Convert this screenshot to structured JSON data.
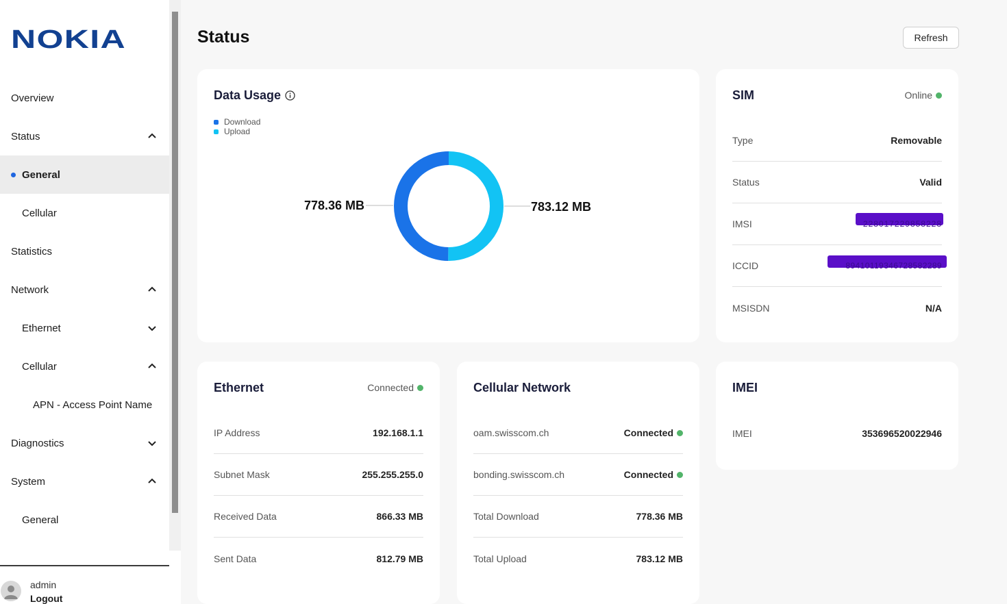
{
  "brand": {
    "logo_text": "NOKIA",
    "color": "#124191"
  },
  "page": {
    "title": "Status",
    "refresh_label": "Refresh"
  },
  "sidebar": {
    "items": [
      {
        "label": "Overview"
      },
      {
        "label": "Status",
        "chevron": "up"
      },
      {
        "label": "General",
        "active": true
      },
      {
        "label": "Cellular"
      },
      {
        "label": "Statistics"
      },
      {
        "label": "Network",
        "chevron": "up"
      },
      {
        "label": "Ethernet",
        "chevron": "down"
      },
      {
        "label": "Cellular",
        "chevron": "up"
      },
      {
        "label": "APN - Access Point Name"
      },
      {
        "label": "Diagnostics",
        "chevron": "down"
      },
      {
        "label": "System",
        "chevron": "up"
      },
      {
        "label": "General"
      }
    ],
    "user": {
      "name": "admin",
      "logout_label": "Logout"
    }
  },
  "data_usage": {
    "title": "Data Usage",
    "legend": [
      {
        "label": "Download",
        "color": "#1a73e8"
      },
      {
        "label": "Upload",
        "color": "#12c3f4"
      }
    ],
    "download_label": "778.36 MB",
    "upload_label": "783.12 MB",
    "download_value": 778.36,
    "upload_value": 783.12
  },
  "sim": {
    "title": "SIM",
    "status": "Online",
    "rows": [
      {
        "key": "Type",
        "value": "Removable"
      },
      {
        "key": "Status",
        "value": "Valid"
      },
      {
        "key": "IMSI",
        "value": "228017229858228",
        "redacted": true
      },
      {
        "key": "ICCID",
        "value": "89410119346728582289",
        "redacted": true
      },
      {
        "key": "MSISDN",
        "value": "N/A"
      }
    ]
  },
  "ethernet": {
    "title": "Ethernet",
    "status": "Connected",
    "rows": [
      {
        "key": "IP Address",
        "value": "192.168.1.1"
      },
      {
        "key": "Subnet Mask",
        "value": "255.255.255.0"
      },
      {
        "key": "Received Data",
        "value": "866.33 MB"
      },
      {
        "key": "Sent Data",
        "value": "812.79 MB"
      }
    ]
  },
  "cellular": {
    "title": "Cellular Network",
    "rows": [
      {
        "key": "oam.swisscom.ch",
        "value": "Connected",
        "dot": true
      },
      {
        "key": "bonding.swisscom.ch",
        "value": "Connected",
        "dot": true
      },
      {
        "key": "Total Download",
        "value": "778.36 MB"
      },
      {
        "key": "Total Upload",
        "value": "783.12 MB"
      }
    ]
  },
  "imei": {
    "title": "IMEI",
    "rows": [
      {
        "key": "IMEI",
        "value": "353696520022946"
      }
    ]
  }
}
